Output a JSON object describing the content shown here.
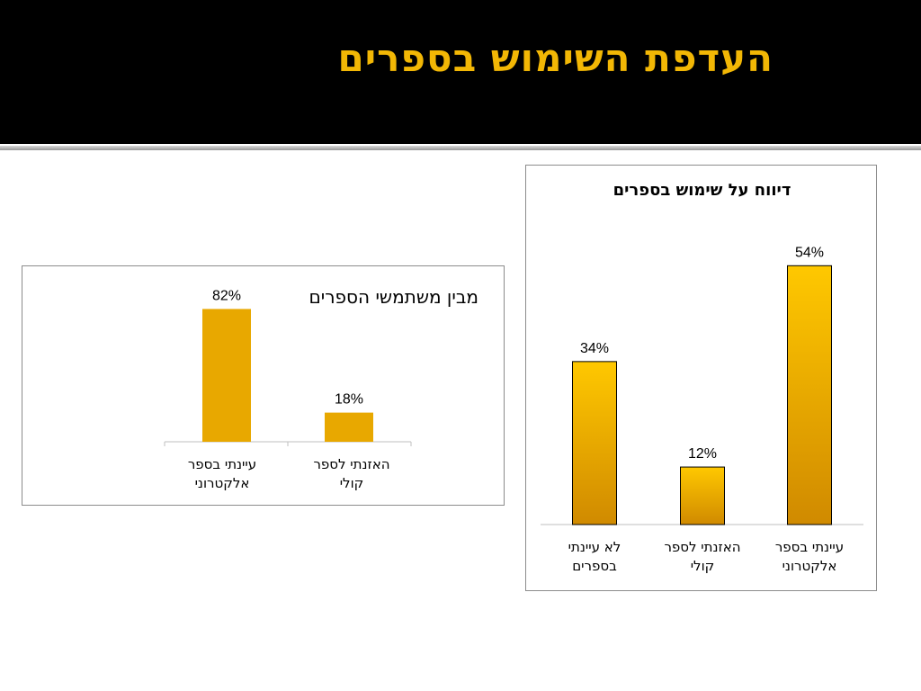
{
  "slide": {
    "title": "העדפת השימוש בספרים"
  },
  "colors": {
    "header_bg": "#000000",
    "title": "#F2B705",
    "bar_flat": "#E8A800",
    "bar_gradient_top": "#FFC800",
    "bar_gradient_bottom": "#D08A00",
    "bar_stroke": "#000000"
  },
  "chart_data": [
    {
      "type": "bar",
      "title": "מבין משתמשי הספרים",
      "categories": [
        "עיינתי בספר אלקטרוני",
        "האזנתי לספר קולי"
      ],
      "category_lines": [
        [
          "עיינתי בספר",
          "אלקטרוני"
        ],
        [
          "האזנתי לספר",
          "קולי"
        ]
      ],
      "values": [
        82,
        18
      ],
      "value_labels": [
        "82%",
        "18%"
      ],
      "unit": "%",
      "ylim": [
        0,
        100
      ],
      "grid": false,
      "legend": "none"
    },
    {
      "type": "bar",
      "title": "דיווח על שימוש בספרים",
      "categories": [
        "לא עיינתי בספרים",
        "האזנתי לספר קולי",
        "עיינתי בספר אלקטרוני"
      ],
      "category_lines": [
        [
          "לא עיינתי",
          "בספרים"
        ],
        [
          "האזנתי לספר",
          "קולי"
        ],
        [
          "עיינתי בספר",
          "אלקטרוני"
        ]
      ],
      "values": [
        34,
        12,
        54
      ],
      "value_labels": [
        "34%",
        "12%",
        "54%"
      ],
      "unit": "%",
      "ylim": [
        0,
        58
      ],
      "grid": false,
      "legend": "none"
    }
  ]
}
